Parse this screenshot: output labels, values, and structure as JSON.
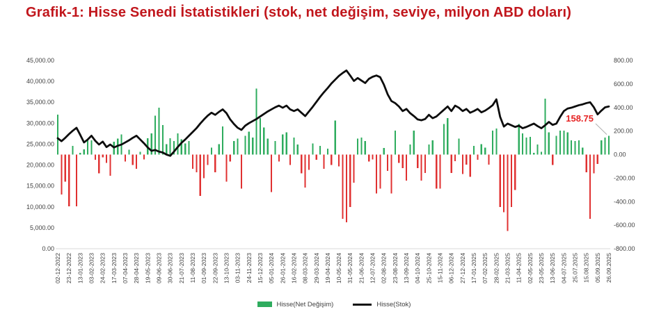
{
  "page": {
    "title": "Grafik-1: Hisse Senedi İstatistikleri (stok, net değişim, seviye, milyon ABD doları)"
  },
  "legend": {
    "net_change_label": "Hisse(Net Değişim)",
    "stock_label": "Hisse(Stok)"
  },
  "colors": {
    "title": "#c1161c",
    "bar_positive": "#2eac5e",
    "bar_negative": "#e03131",
    "line": "#0d0d0d",
    "axis_text": "#404040",
    "baseline": "#d9d9d9",
    "annotation": "#e62222",
    "leader": "#b0b0b0"
  },
  "chart_data": {
    "type": "bar",
    "subtype": "combo-bar-line",
    "title": "Grafik-1: Hisse Senedi İstatistikleri (stok, net değişim, seviye, milyon ABD doları)",
    "xlabel": "",
    "ylabel_left": "",
    "ylabel_right": "",
    "grid": false,
    "legend_position": "bottom-center",
    "left_axis": {
      "min": 0,
      "max": 45000,
      "step": 5000,
      "ticks": [
        "45,000.00",
        "40,000.00",
        "35,000.00",
        "30,000.00",
        "25,000.00",
        "20,000.00",
        "15,000.00",
        "10,000.00",
        "5,000.00",
        "0.00"
      ]
    },
    "right_axis": {
      "min": -800,
      "max": 800,
      "step": 200,
      "ticks": [
        "800.00",
        "600.00",
        "400.00",
        "200.00",
        "0.00",
        "-200.00",
        "-400.00",
        "-600.00",
        "-800.00"
      ]
    },
    "x_tick_every": 3,
    "x_tick_labels": [
      "02-12-2022",
      "23-12-2022",
      "13-01-2023",
      "03-02-2023",
      "24-02-2023",
      "17-03-2023",
      "07-04-2023",
      "28-04-2023",
      "19-05-2023",
      "09-06-2023",
      "30-06-2023",
      "21-07-2023",
      "11-08-2023",
      "01-09-2023",
      "22-09-2023",
      "13-10-2023",
      "03-11-2023",
      "24-11-2023",
      "15-12-2023",
      "05-01-2024",
      "26-01-2024",
      "16-02-2024",
      "08-03-2024",
      "29-03-2024",
      "19-04-2024",
      "10-05-2024",
      "31-05-2024",
      "21-06-2024",
      "12-07-2024",
      "02-08-2024",
      "23-08-2024",
      "13-09-2024",
      "04-10-2024",
      "25-10-2024",
      "15-11-2024",
      "06-12-2024",
      "27-12-2024",
      "17-01-2025",
      "07-02-2025",
      "28-02-2025",
      "21-03-2025",
      "11-04-2025",
      "02-05-2025",
      "23-05-2025",
      "13-06-2025",
      "04-07-2025",
      "25.07.2025",
      "15.08.2025",
      "05.09.2025",
      "26.09.2025"
    ],
    "series": [
      {
        "name": "Hisse(Net Değişim)",
        "type": "bar",
        "axis": "right",
        "values": [
          340,
          -340,
          -230,
          -440,
          75,
          -440,
          15,
          45,
          135,
          120,
          -45,
          -160,
          -25,
          -70,
          -180,
          110,
          135,
          170,
          -60,
          40,
          -90,
          -120,
          25,
          -40,
          140,
          180,
          330,
          400,
          250,
          90,
          140,
          115,
          180,
          130,
          95,
          115,
          -120,
          -150,
          -350,
          -200,
          -90,
          60,
          -150,
          90,
          240,
          -230,
          -60,
          115,
          135,
          -290,
          160,
          195,
          145,
          560,
          310,
          230,
          135,
          -320,
          115,
          -60,
          170,
          190,
          -90,
          145,
          85,
          -160,
          -280,
          -130,
          95,
          -45,
          75,
          -120,
          50,
          -90,
          290,
          -100,
          -545,
          -575,
          -445,
          -240,
          135,
          145,
          115,
          -60,
          -40,
          -330,
          -290,
          55,
          -140,
          -330,
          205,
          -70,
          -115,
          -220,
          85,
          205,
          -115,
          -220,
          -155,
          85,
          120,
          -290,
          -290,
          260,
          310,
          -155,
          -55,
          135,
          -165,
          -85,
          -190,
          75,
          -45,
          90,
          60,
          -85,
          205,
          220,
          -445,
          -490,
          -650,
          -445,
          -300,
          260,
          180,
          145,
          150,
          15,
          85,
          25,
          475,
          190,
          -90,
          160,
          205,
          205,
          190,
          120,
          115,
          120,
          60,
          -150,
          -545,
          -160,
          -80,
          120,
          145,
          158.75
        ]
      },
      {
        "name": "Hisse(Stok)",
        "type": "line",
        "axis": "left",
        "values": [
          26400,
          25700,
          26500,
          27400,
          28200,
          28900,
          27200,
          25400,
          26100,
          27000,
          25800,
          24900,
          25600,
          24300,
          24900,
          24200,
          24600,
          24900,
          25400,
          25900,
          26500,
          27000,
          26100,
          25200,
          24200,
          23400,
          23600,
          23200,
          23000,
          22500,
          22200,
          23200,
          24300,
          25300,
          26100,
          27000,
          27900,
          28800,
          29900,
          30900,
          31800,
          32500,
          32000,
          32700,
          33300,
          32400,
          30900,
          29800,
          28900,
          28400,
          29400,
          30000,
          30500,
          31000,
          31600,
          32200,
          32800,
          33300,
          33800,
          34200,
          33700,
          34200,
          33300,
          32900,
          33300,
          32500,
          31700,
          32800,
          33900,
          35100,
          36300,
          37400,
          38400,
          39500,
          40400,
          41300,
          42000,
          42600,
          41400,
          40100,
          40800,
          40200,
          39600,
          40600,
          41100,
          41400,
          41000,
          39200,
          36900,
          35300,
          34800,
          34000,
          32900,
          33400,
          32400,
          31700,
          30900,
          30700,
          31000,
          32000,
          31200,
          31600,
          32400,
          33200,
          34000,
          32900,
          34200,
          33700,
          32900,
          33400,
          32500,
          32900,
          33400,
          32600,
          33000,
          33600,
          34300,
          35700,
          31500,
          29200,
          29900,
          29500,
          29100,
          29400,
          28800,
          29100,
          29500,
          29900,
          29300,
          28800,
          29500,
          30300,
          29600,
          29900,
          31500,
          32900,
          33500,
          33700,
          34000,
          34300,
          34500,
          34800,
          35000,
          33800,
          32100,
          33000,
          33800,
          34000
        ]
      }
    ],
    "annotation": {
      "text": "158.75",
      "series": "Hisse(Net Değişim)",
      "target_index": 147
    }
  }
}
